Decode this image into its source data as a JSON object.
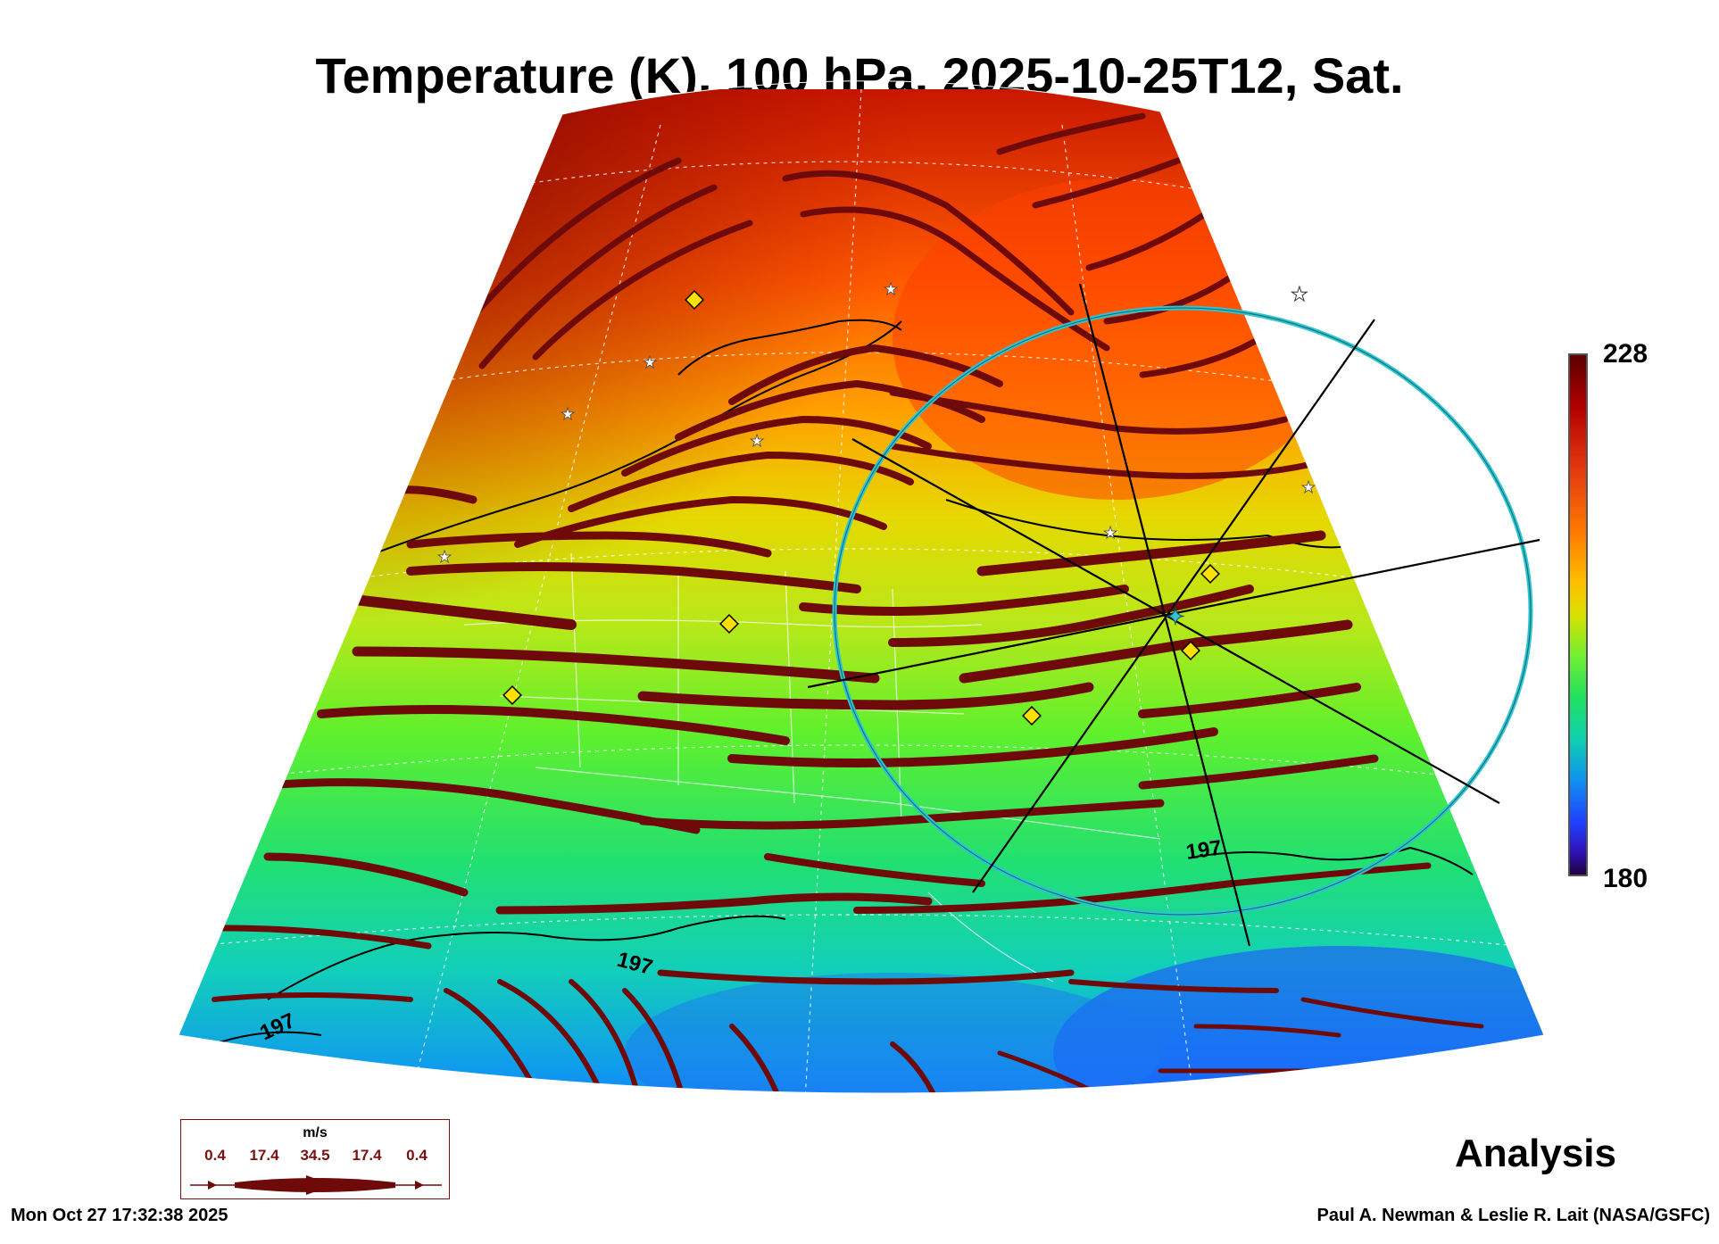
{
  "title": "Temperature (K), 100 hPa, 2025-10-25T12, Sat.",
  "colorbar": {
    "max_label": "228",
    "min_label": "180",
    "min": 180,
    "max": 228
  },
  "contour_labels": [
    "197",
    "197",
    "197"
  ],
  "legend": {
    "unit": "m/s",
    "values": [
      "0.4",
      "17.4",
      "34.5",
      "17.4",
      "0.4"
    ]
  },
  "analysis_label": "Analysis",
  "timestamp": "Mon Oct 27 17:32:38 2025",
  "credit": "Paul A. Newman & Leslie R. Lait (NASA/GSFC)",
  "colors": {
    "streamline": "#6e0a0a",
    "circle": "#2ec4d0",
    "marker_diamond": "#ffe000"
  }
}
